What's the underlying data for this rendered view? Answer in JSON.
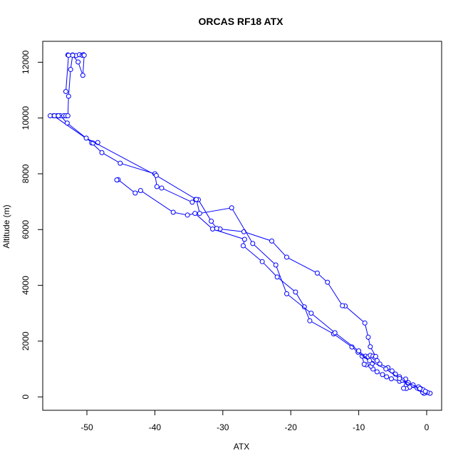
{
  "chart_data": {
    "type": "line",
    "title": "ORCAS RF18 ATX",
    "xlabel": "ATX",
    "ylabel": "Altitude (m)",
    "xlim": [
      -56.5,
      2.2
    ],
    "ylim": [
      -480,
      12750
    ],
    "x_ticks": [
      -50,
      -40,
      -30,
      -20,
      -10,
      0
    ],
    "x_tick_labels": [
      "-50",
      "-40",
      "-30",
      "-20",
      "-10",
      "0"
    ],
    "y_ticks": [
      0,
      2000,
      4000,
      6000,
      8000,
      10000,
      12000
    ],
    "y_tick_labels": [
      "0",
      "2000",
      "4000",
      "6000",
      "8000",
      "10000",
      "12000"
    ],
    "grid": false,
    "legend": "none",
    "color": "#0000ff",
    "markers": "open-circle",
    "series": [
      {
        "x": [
          0.5,
          0.1,
          -0.2,
          -0.4,
          -0.6,
          -0.8,
          -1.1,
          -1.4,
          -2.5,
          -3.0,
          -3.4,
          -3.1,
          -2.8,
          -4.0,
          -5.2,
          -5.9,
          -6.5,
          -7.3,
          -7.9,
          -8.2,
          -8.9,
          -9.2,
          -9.5,
          -9.0,
          -8.6,
          -8.3,
          -7.9,
          -7.6,
          -7.3,
          -6.9,
          -5.7,
          -5.1,
          -4.6,
          -4.0,
          -3.6,
          -2.7,
          -2.0,
          -1.2,
          -0.9,
          -0.5,
          -0.2
        ],
        "y": [
          130,
          160,
          150,
          130,
          170,
          260,
          290,
          320,
          350,
          300,
          310,
          640,
          500,
          560,
          650,
          720,
          800,
          900,
          1000,
          1100,
          1150,
          1170,
          1460,
          1460,
          1440,
          1490,
          1460,
          1400,
          1300,
          1180,
          1050,
          930,
          820,
          720,
          600,
          510,
          430,
          360,
          300,
          250,
          200
        ]
      },
      {
        "x": [
          -8.0,
          -10.1,
          -11.0,
          -13.7,
          -17.2,
          -18.0,
          -19.3,
          -22.0,
          -24.2,
          -27.0,
          -26.8,
          -31.5,
          -34.1,
          -35.2,
          -37.3,
          -42.1,
          -42.9,
          -45.4,
          -45.6
        ],
        "y": [
          1200,
          1600,
          1790,
          2260,
          2730,
          3230,
          3760,
          4300,
          4850,
          5420,
          5650,
          6020,
          6580,
          6520,
          6620,
          7400,
          7310,
          7790,
          7780
        ]
      },
      {
        "x": [
          -7.5,
          -8.3,
          -8.6,
          -9.1,
          -12.0,
          -12.4,
          -14.6,
          -16.1,
          -20.6,
          -22.8,
          -26.9,
          -30.4,
          -30.9,
          -31.7,
          -33.6,
          -34.0,
          -34.5,
          -39.0,
          -39.7,
          -40.0,
          -45.1,
          -47.8,
          -49.3,
          -48.4,
          -49.1,
          -54.9,
          -55.4
        ],
        "y": [
          1450,
          1800,
          2140,
          2650,
          3260,
          3270,
          4110,
          4440,
          5010,
          5590,
          5920,
          6020,
          6040,
          6300,
          7070,
          7080,
          6980,
          7490,
          7540,
          8000,
          8380,
          8760,
          9110,
          9120,
          9100,
          10080,
          10080
        ]
      },
      {
        "x": [
          -1.0,
          -4.0,
          -6.0,
          -8.4,
          -10.0,
          -13.5,
          -17.0,
          -20.6,
          -22.2,
          -25.6,
          -28.7,
          -33.4,
          -33.9,
          -39.8,
          -50.1,
          -52.9,
          -53.9,
          -54.4
        ],
        "y": [
          300,
          660,
          1000,
          1300,
          1650,
          2300,
          3000,
          3700,
          4730,
          5500,
          6780,
          6580,
          7080,
          7940,
          9280,
          9820,
          10080,
          10080
        ]
      },
      {
        "x": [
          -54.8,
          -54.2,
          -53.4,
          -53.1,
          -52.8,
          -52.7,
          -52.4,
          -52.1,
          -51.6,
          -51.1,
          -50.7,
          -50.5,
          -50.4,
          -50.6,
          -51.3,
          -52.1,
          -52.8,
          -52.7,
          -53.1
        ],
        "y": [
          10080,
          10080,
          10080,
          10080,
          10080,
          10780,
          11740,
          12260,
          12240,
          12270,
          12250,
          12270,
          12250,
          11530,
          12010,
          12250,
          12260,
          12250,
          10950
        ]
      }
    ]
  }
}
